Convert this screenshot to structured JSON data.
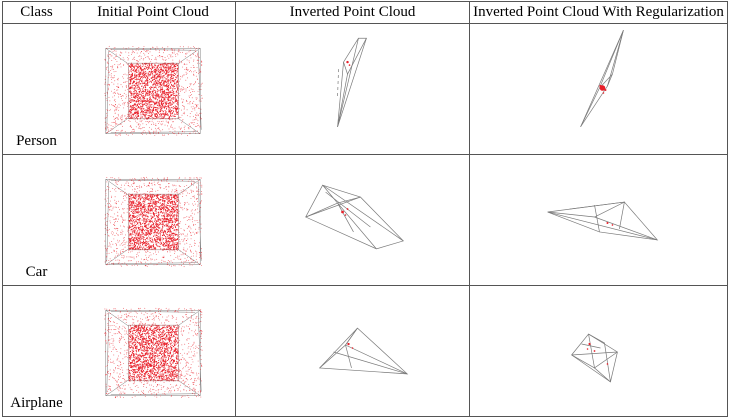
{
  "table": {
    "headers": [
      "Class",
      "Initial Point Cloud",
      "Inverted Point Cloud",
      "Inverted Point Cloud With Regularization"
    ],
    "rows": [
      {
        "class": "Person"
      },
      {
        "class": "Car"
      },
      {
        "class": "Airplane"
      }
    ]
  },
  "colors": {
    "points": "#e8202a",
    "wire": "#7a7a7a"
  },
  "icons": [
    "point-cloud-image"
  ]
}
